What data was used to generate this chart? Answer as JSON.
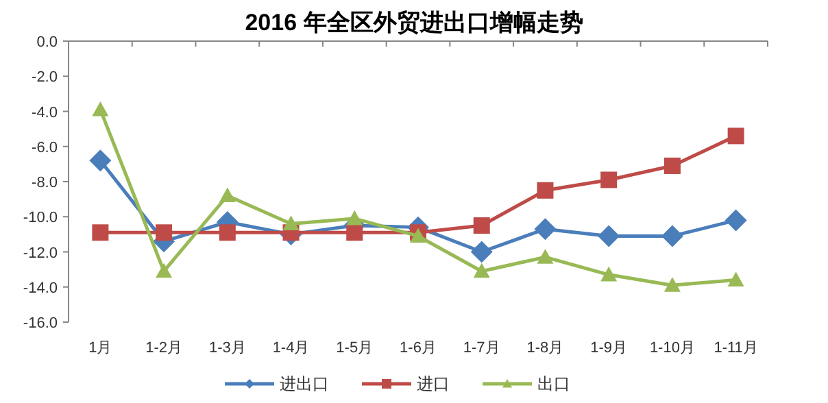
{
  "chart_data": {
    "type": "line",
    "title": "2016 年全区外贸进出口增幅走势",
    "categories": [
      "1月",
      "1-2月",
      "1-3月",
      "1-4月",
      "1-5月",
      "1-6月",
      "1-7月",
      "1-8月",
      "1-9月",
      "1-10月",
      "1-11月"
    ],
    "series": [
      {
        "name": "进出口",
        "color": "#4a7ebb",
        "marker": "diamond",
        "values": [
          -6.8,
          -11.4,
          -10.3,
          -11.0,
          -10.5,
          -10.6,
          -12.0,
          -10.7,
          -11.1,
          -11.1,
          -10.2
        ]
      },
      {
        "name": "进口",
        "color": "#be4b48",
        "marker": "square",
        "values": [
          -10.9,
          -10.9,
          -10.9,
          -10.9,
          -10.9,
          -10.9,
          -10.5,
          -8.5,
          -7.9,
          -7.1,
          -5.4
        ]
      },
      {
        "name": "出口",
        "color": "#98b954",
        "marker": "triangle",
        "values": [
          -3.9,
          -13.1,
          -8.8,
          -10.4,
          -10.1,
          -11.1,
          -13.1,
          -12.3,
          -13.3,
          -13.9,
          -13.6
        ]
      }
    ],
    "ylim": [
      -16,
      0
    ],
    "yticks": [
      {
        "value": 0,
        "label": "0.0"
      },
      {
        "value": -2,
        "label": "-2.0"
      },
      {
        "value": -4,
        "label": "-4.0"
      },
      {
        "value": -6,
        "label": "-6.0"
      },
      {
        "value": -8,
        "label": "-8.0"
      },
      {
        "value": -10,
        "label": "-10.0"
      },
      {
        "value": -12,
        "label": "-12.0"
      },
      {
        "value": -14,
        "label": "-14.0"
      },
      {
        "value": -16,
        "label": "-16.0"
      }
    ],
    "legend": "bottom",
    "line_style": "solid"
  }
}
